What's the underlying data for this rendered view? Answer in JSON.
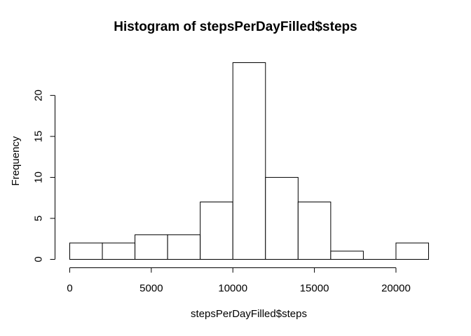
{
  "chart_data": {
    "type": "bar",
    "title": "Histogram of stepsPerDayFilled$steps",
    "xlabel": "stepsPerDayFilled$steps",
    "ylabel": "Frequency",
    "bins": [
      {
        "from": 0,
        "to": 2000,
        "count": 2
      },
      {
        "from": 2000,
        "to": 4000,
        "count": 2
      },
      {
        "from": 4000,
        "to": 6000,
        "count": 3
      },
      {
        "from": 6000,
        "to": 8000,
        "count": 3
      },
      {
        "from": 8000,
        "to": 10000,
        "count": 7
      },
      {
        "from": 10000,
        "to": 12000,
        "count": 24
      },
      {
        "from": 12000,
        "to": 14000,
        "count": 10
      },
      {
        "from": 14000,
        "to": 16000,
        "count": 7
      },
      {
        "from": 16000,
        "to": 18000,
        "count": 1
      },
      {
        "from": 18000,
        "to": 20000,
        "count": 0
      },
      {
        "from": 20000,
        "to": 22000,
        "count": 2
      }
    ],
    "xlim": [
      0,
      22000
    ],
    "ylim": [
      0,
      24
    ],
    "x_ticks": [
      "0",
      "5000",
      "10000",
      "15000",
      "20000"
    ],
    "y_ticks": [
      "0",
      "5",
      "10",
      "15",
      "20"
    ],
    "grid": false,
    "bar_fill": "#ffffff",
    "bar_stroke": "#000000"
  }
}
